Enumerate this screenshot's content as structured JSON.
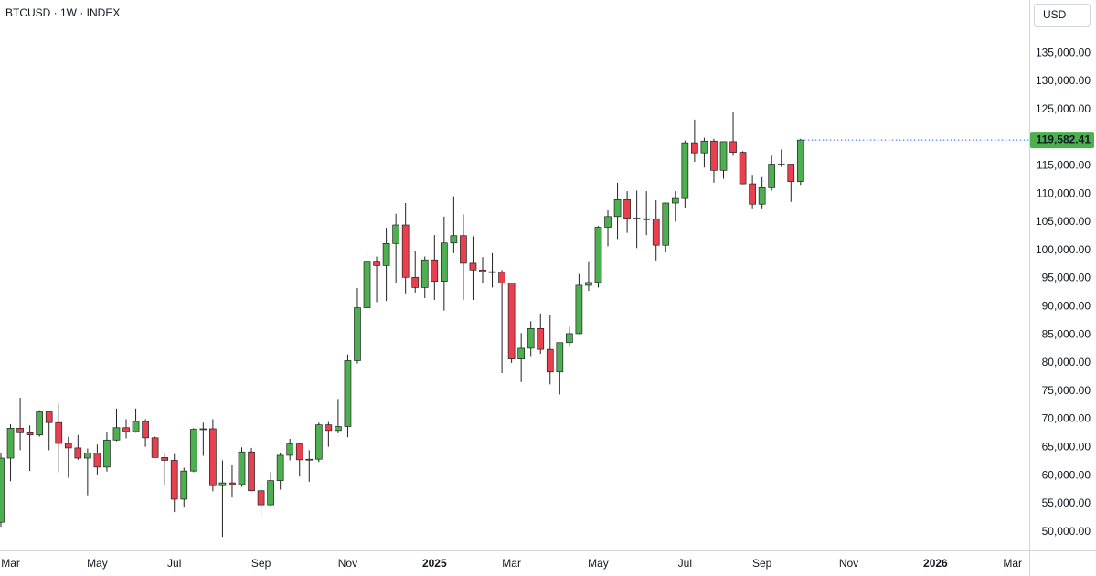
{
  "chart_data": {
    "type": "candlestick",
    "title": "BTCUSD · 1W · INDEX",
    "currency": "USD",
    "categories": [
      null,
      "Mar",
      null,
      null,
      null,
      null,
      null,
      null,
      null,
      null,
      "May",
      null,
      null,
      null,
      null,
      null,
      null,
      null,
      "Jul",
      null,
      null,
      null,
      null,
      null,
      null,
      null,
      null,
      "Sep",
      null,
      null,
      null,
      null,
      null,
      null,
      null,
      null,
      "Nov",
      null,
      null,
      null,
      null,
      null,
      null,
      null,
      null,
      "2025",
      null,
      null,
      null,
      null,
      null,
      null,
      null,
      "Mar",
      null,
      null,
      null,
      null,
      null,
      null,
      null,
      null,
      "May",
      null,
      null,
      null,
      null,
      null,
      null,
      null,
      null,
      "Jul",
      null,
      null,
      null,
      null,
      null,
      null,
      null,
      "Sep",
      null,
      null,
      null,
      null,
      null,
      null,
      null,
      null,
      "Nov",
      null,
      null,
      null,
      null,
      null,
      null,
      null,
      null,
      "2026",
      null,
      null,
      null,
      null,
      null,
      null,
      null,
      "Mar",
      null
    ],
    "open": [
      51700,
      63100,
      68400,
      67600,
      67200,
      71300,
      69400,
      65700,
      64900,
      63100,
      64000,
      61500,
      66300,
      68500,
      67800,
      69600,
      66700,
      63200,
      62700,
      55800,
      60800,
      68200,
      68300,
      58200,
      58700,
      58400,
      64200,
      57300,
      54800,
      59100,
      63600,
      65600,
      62800,
      62900,
      69000,
      68000,
      68700,
      80400,
      89800,
      97900,
      97300,
      101200,
      104500,
      95200,
      93400,
      98300,
      94500,
      101300,
      102600,
      97700,
      96500,
      96200,
      96100,
      94200,
      80700,
      82600,
      86100,
      82400,
      78400,
      83600,
      85200,
      93800,
      94300,
      104100,
      106000,
      109000,
      105700,
      105600,
      105600,
      100900,
      108400,
      109200,
      119100,
      117300,
      119400,
      114200,
      119300,
      117400,
      111800,
      108200,
      111100,
      115300,
      115300,
      112200,
      null,
      null,
      null,
      null,
      null,
      null,
      null,
      null,
      null,
      null,
      null,
      null,
      null,
      null,
      null,
      null,
      null,
      null,
      null,
      null,
      null,
      null,
      null
    ],
    "high": [
      64000,
      69100,
      73800,
      68900,
      71600,
      71300,
      72800,
      66900,
      67200,
      64800,
      65500,
      67700,
      71900,
      70000,
      71900,
      70000,
      66900,
      63800,
      63800,
      61400,
      68400,
      69400,
      70000,
      62700,
      61800,
      65000,
      64900,
      58500,
      60600,
      64100,
      66500,
      65700,
      64500,
      69400,
      69500,
      73600,
      81500,
      93300,
      99600,
      98900,
      104000,
      106500,
      108400,
      99900,
      98900,
      102700,
      106000,
      109600,
      106400,
      102500,
      98800,
      99500,
      96500,
      94200,
      85300,
      87400,
      88800,
      88500,
      83600,
      86400,
      95800,
      97900,
      104300,
      107100,
      112000,
      110500,
      110600,
      110500,
      108900,
      108500,
      110500,
      119500,
      123200,
      120000,
      119800,
      119300,
      124500,
      117600,
      113400,
      113000,
      116800,
      117900,
      115300,
      119800,
      null,
      null,
      null,
      null,
      null,
      null,
      null,
      null,
      null,
      null,
      null,
      null,
      null,
      null,
      null,
      null,
      null,
      null,
      null,
      null,
      null,
      null,
      null
    ],
    "low": [
      50900,
      59000,
      64500,
      60800,
      66900,
      64500,
      60600,
      59600,
      62800,
      56500,
      60200,
      60700,
      66100,
      66600,
      67600,
      65100,
      63400,
      58400,
      53500,
      54300,
      60600,
      63500,
      57200,
      49100,
      56100,
      58000,
      57200,
      52600,
      54600,
      57500,
      62700,
      59800,
      58900,
      62400,
      65100,
      67500,
      66800,
      79900,
      89400,
      90800,
      91000,
      94200,
      92200,
      92500,
      91500,
      91200,
      89300,
      99500,
      91200,
      91200,
      94100,
      93400,
      78200,
      80000,
      76600,
      81200,
      81600,
      76200,
      74400,
      83000,
      85100,
      92800,
      93400,
      100700,
      102000,
      103100,
      100400,
      102700,
      98200,
      99600,
      105100,
      107500,
      115700,
      114700,
      112000,
      112700,
      116800,
      111700,
      107300,
      107300,
      110600,
      114800,
      108600,
      111600,
      null,
      null,
      null,
      null,
      null,
      null,
      null,
      null,
      null,
      null,
      null,
      null,
      null,
      null,
      null,
      null,
      null,
      null,
      null,
      null,
      null,
      null,
      null
    ],
    "close": [
      63100,
      68400,
      67600,
      67200,
      71300,
      69400,
      65700,
      64900,
      63100,
      64000,
      61500,
      66300,
      68500,
      67800,
      69600,
      66700,
      63200,
      62700,
      55800,
      60800,
      68200,
      68300,
      58200,
      58700,
      58400,
      64200,
      57300,
      54800,
      59100,
      63600,
      65600,
      62800,
      62900,
      69000,
      68000,
      68700,
      80400,
      89800,
      97900,
      97300,
      101200,
      104500,
      95200,
      93400,
      98300,
      94500,
      101300,
      102600,
      97700,
      96500,
      96200,
      96100,
      94200,
      80700,
      82600,
      86100,
      82400,
      78400,
      83600,
      85200,
      93800,
      94300,
      104100,
      106000,
      109000,
      105700,
      105600,
      105600,
      100900,
      108400,
      109200,
      119100,
      117300,
      119400,
      114200,
      119300,
      117400,
      111800,
      108200,
      111100,
      115300,
      115300,
      112200,
      119582.41,
      null,
      null,
      null,
      null,
      null,
      null,
      null,
      null,
      null,
      null,
      null,
      null,
      null,
      null,
      null,
      null,
      null,
      null,
      null,
      null,
      null,
      null,
      null
    ],
    "last_price_label": "119,582.41",
    "up_color": "#4caf50",
    "down_color": "#e8404f",
    "price_line_color": "#2962ff",
    "ylim": [
      46700,
      144450
    ],
    "yticks": [
      {
        "value": 50000,
        "label": "50,000.00"
      },
      {
        "value": 55000,
        "label": "55,000.00"
      },
      {
        "value": 60000,
        "label": "60,000.00"
      },
      {
        "value": 65000,
        "label": "65,000.00"
      },
      {
        "value": 70000,
        "label": "70,000.00"
      },
      {
        "value": 75000,
        "label": "75,000.00"
      },
      {
        "value": 80000,
        "label": "80,000.00"
      },
      {
        "value": 85000,
        "label": "85,000.00"
      },
      {
        "value": 90000,
        "label": "90,000.00"
      },
      {
        "value": 95000,
        "label": "95,000.00"
      },
      {
        "value": 100000,
        "label": "100,000.00"
      },
      {
        "value": 105000,
        "label": "105,000.00"
      },
      {
        "value": 110000,
        "label": "110,000.00"
      },
      {
        "value": 115000,
        "label": "115,000.00"
      },
      {
        "value": 120000,
        "label": "120,000.00"
      },
      {
        "value": 125000,
        "label": "125,000.00"
      },
      {
        "value": 130000,
        "label": "130,000.00"
      },
      {
        "value": 135000,
        "label": "135,000.00"
      }
    ],
    "grid": false
  }
}
